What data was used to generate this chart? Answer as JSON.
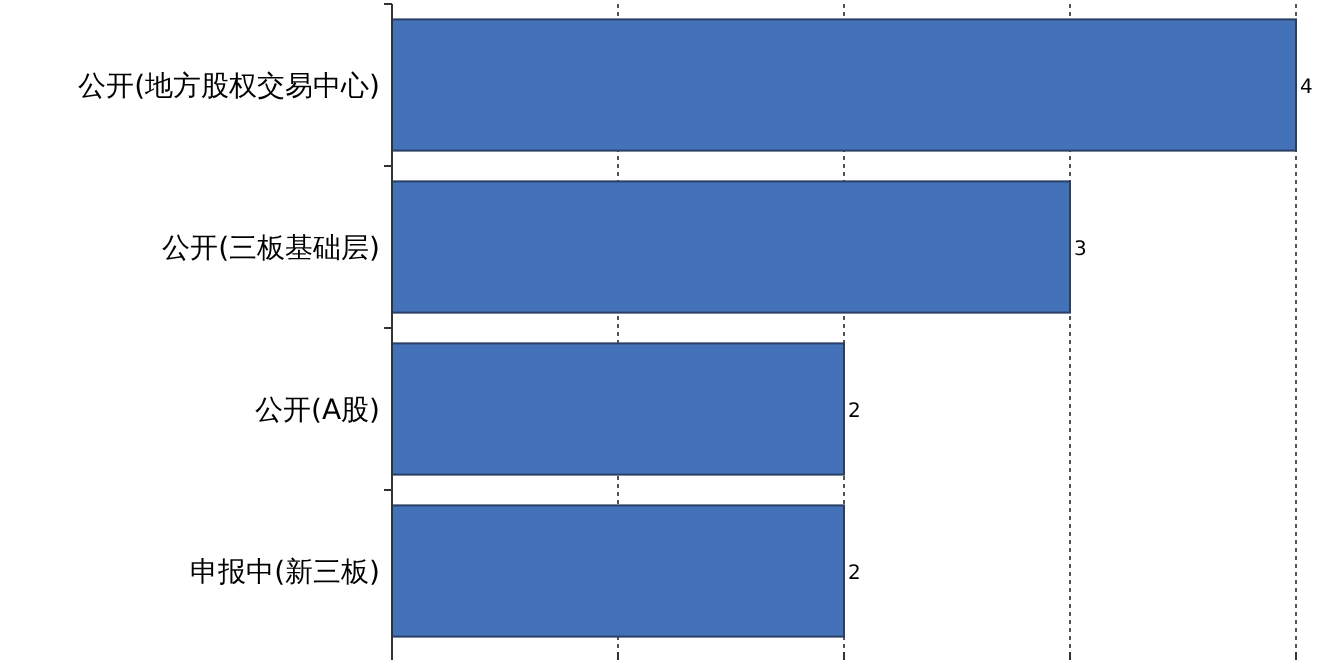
{
  "chart_data": {
    "type": "bar",
    "orientation": "horizontal",
    "categories": [
      "公开(地方股权交易中心)",
      "公开(三板基础层)",
      "公开(A股)",
      "申报中(新三板)"
    ],
    "values": [
      4,
      3,
      2,
      2
    ],
    "color": "#4472b8",
    "xlim": [
      0,
      4
    ],
    "xticks": [
      {
        "value": 0,
        "label": null
      },
      {
        "value": 1,
        "label": null
      },
      {
        "value": 2,
        "label": null
      },
      {
        "value": 3,
        "label": null
      },
      {
        "value": 4,
        "label": null
      }
    ],
    "tick_labels": "y",
    "grid": "x",
    "data_labels": true
  }
}
